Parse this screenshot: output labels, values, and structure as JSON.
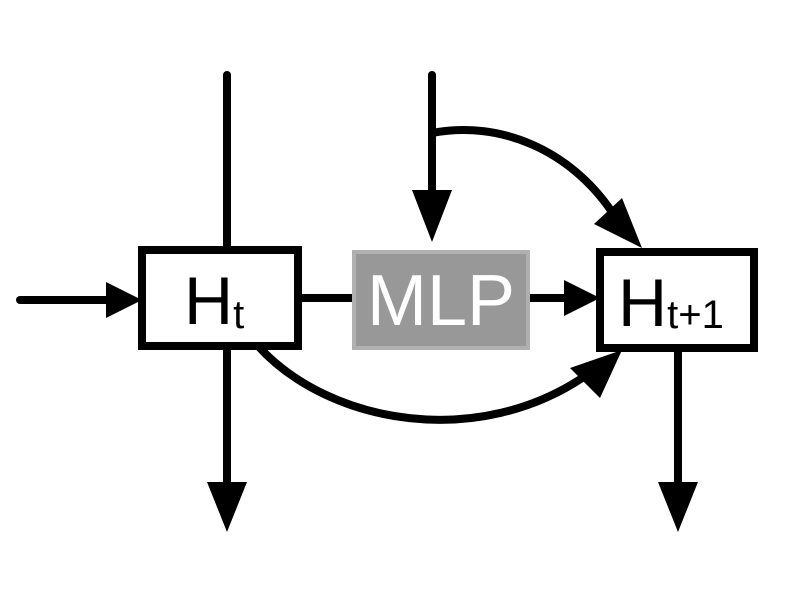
{
  "nodes": {
    "h_t": {
      "main": "H",
      "sub": "t"
    },
    "mlp": {
      "label": "MLP"
    },
    "h_t1": {
      "main": "H",
      "sub": "t+1"
    }
  },
  "colors": {
    "stroke": "#000000",
    "box_fill": "#ffffff",
    "mlp_fill": "#989898",
    "mlp_border": "#b0b0b0",
    "mlp_text": "#ffffff"
  }
}
